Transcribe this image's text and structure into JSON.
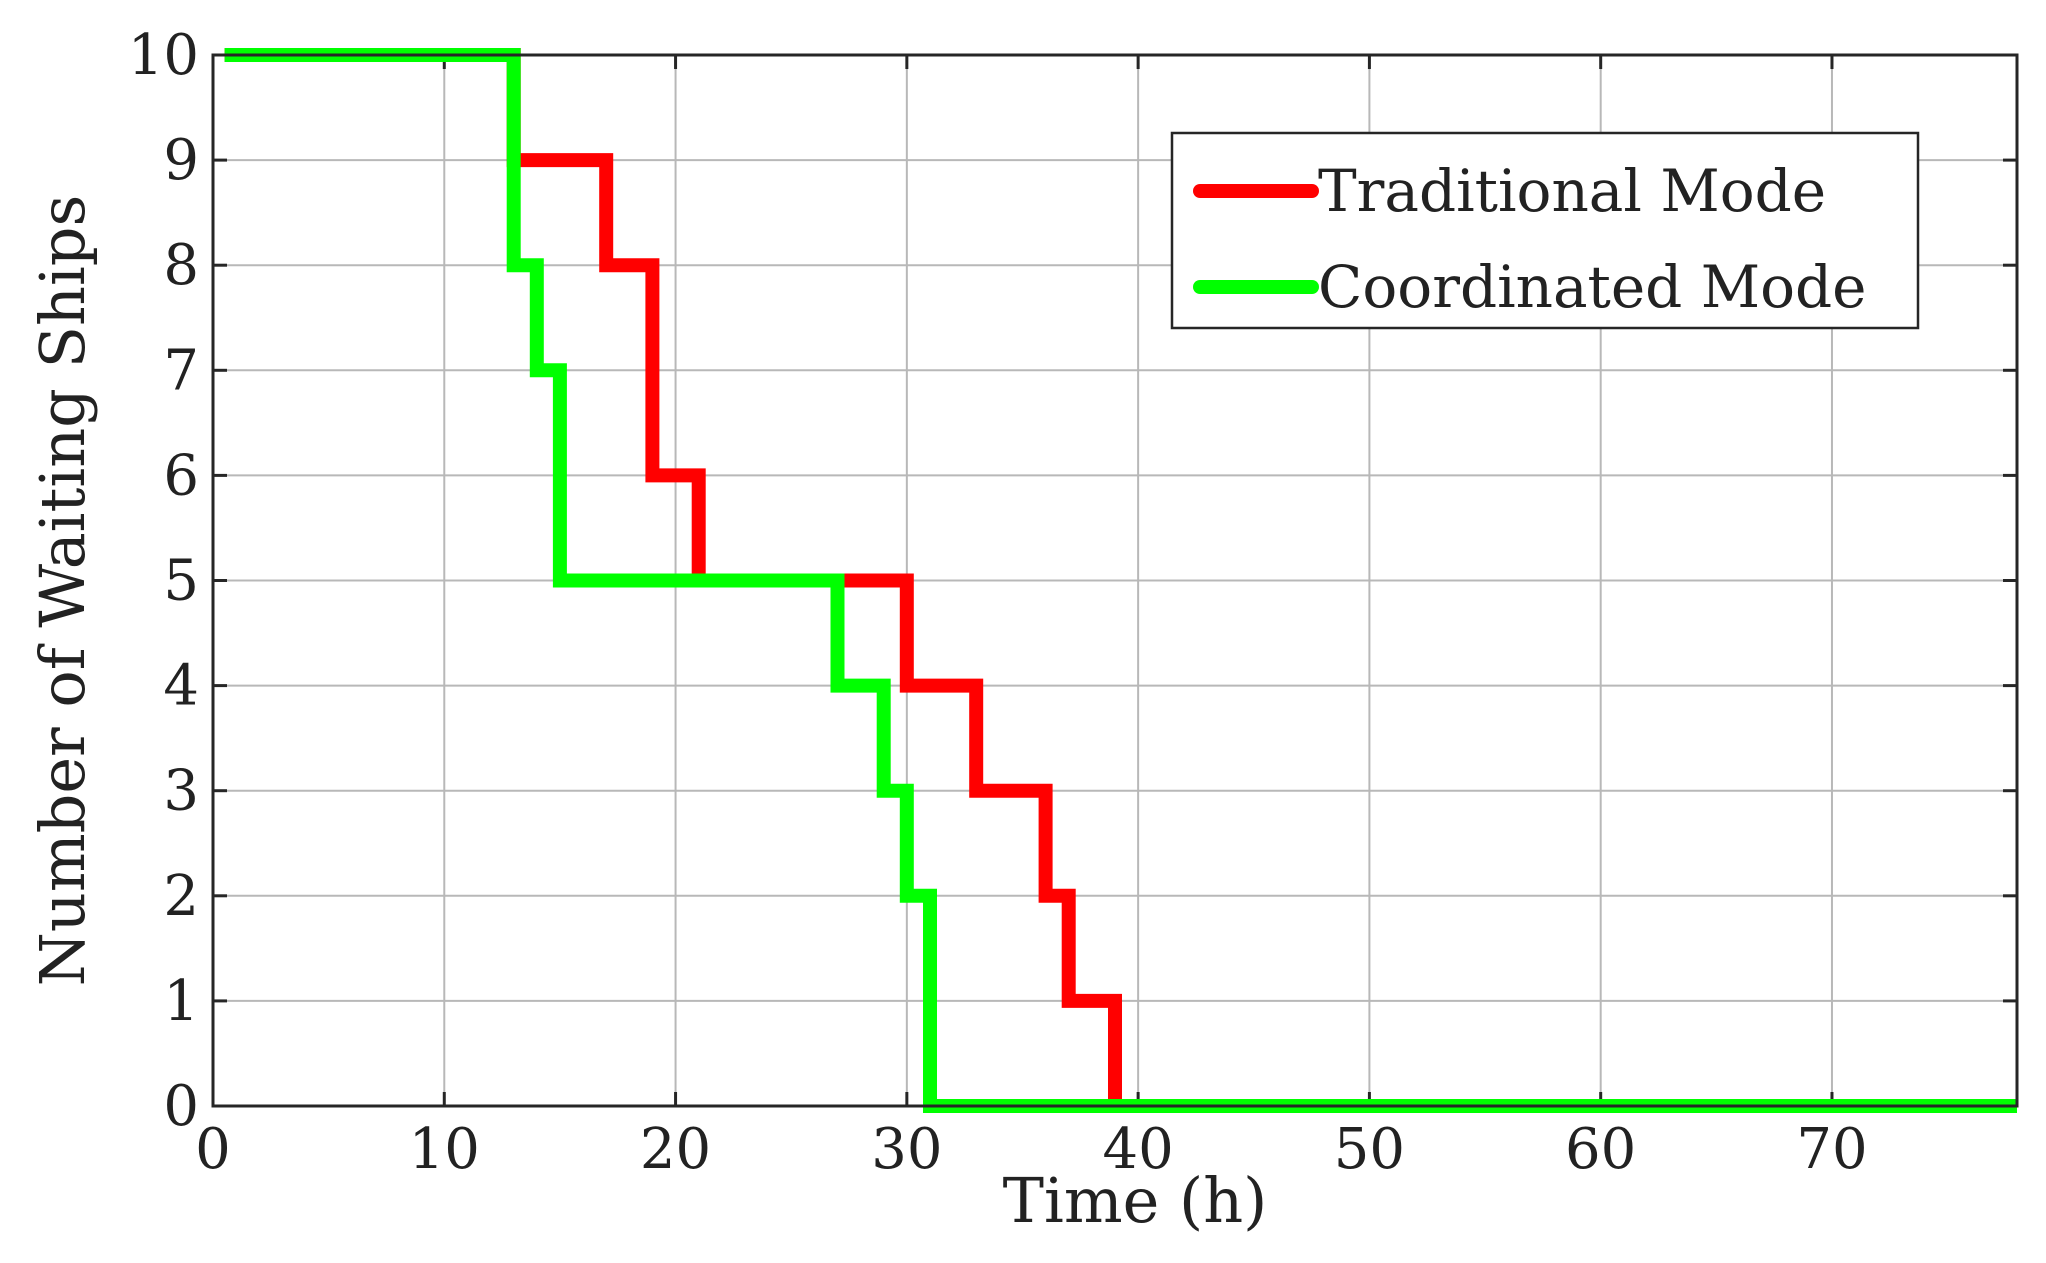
{
  "chart_data": {
    "type": "line",
    "step": true,
    "title": "",
    "xlabel": "Time (h)",
    "ylabel": "Number of Waiting Ships",
    "xlim": [
      0,
      78
    ],
    "ylim": [
      0,
      10
    ],
    "xticks": [
      0,
      10,
      20,
      30,
      40,
      50,
      60,
      70
    ],
    "yticks": [
      0,
      1,
      2,
      3,
      4,
      5,
      6,
      7,
      8,
      9,
      10
    ],
    "xtick_labels": [
      "0",
      "10",
      "20",
      "30",
      "40",
      "50",
      "60",
      "70"
    ],
    "ytick_labels": [
      "0",
      "1",
      "2",
      "3",
      "4",
      "5",
      "6",
      "7",
      "8",
      "9",
      "10"
    ],
    "grid": true,
    "legend": {
      "position": "top-right"
    },
    "series": [
      {
        "name": "Traditional Mode",
        "color": "#ff0000",
        "x": [
          0.5,
          13,
          13,
          17,
          17,
          19,
          19,
          21,
          21,
          30,
          30,
          33,
          33,
          36,
          36,
          37,
          37,
          39,
          39,
          78
        ],
        "y": [
          10,
          10,
          9,
          9,
          8,
          8,
          6,
          6,
          5,
          5,
          4,
          4,
          3,
          3,
          2,
          2,
          1,
          1,
          0,
          0
        ]
      },
      {
        "name": "Coordinated Mode",
        "color": "#00ff00",
        "x": [
          0.5,
          13,
          13,
          14,
          14,
          15,
          15,
          27,
          27,
          29,
          29,
          30,
          30,
          31,
          31,
          78
        ],
        "y": [
          10,
          10,
          8,
          8,
          7,
          7,
          5,
          5,
          4,
          4,
          3,
          3,
          2,
          2,
          0,
          0
        ]
      }
    ]
  }
}
